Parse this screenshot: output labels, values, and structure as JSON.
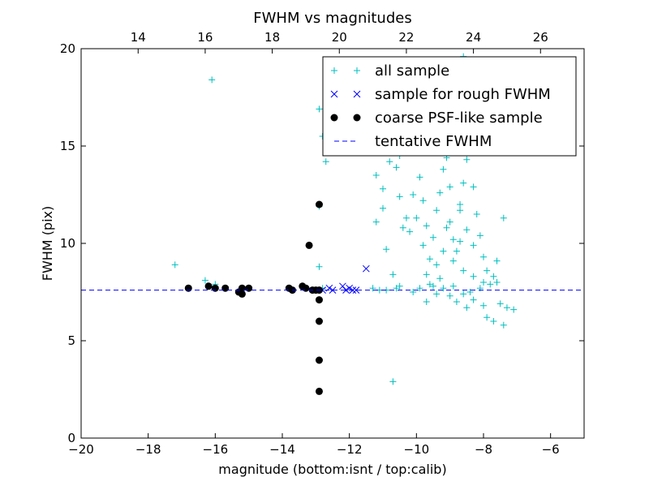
{
  "chart_data": {
    "type": "scatter",
    "title": "FWHM vs magnitudes",
    "xlabel": "magnitude (bottom:isnt / top:calib)",
    "ylabel": "FWHM (pix)",
    "xlim": [
      -20,
      -5
    ],
    "ylim": [
      0,
      20
    ],
    "top_xlim": [
      12.3,
      27.3
    ],
    "x_ticks": [
      "−20",
      "−18",
      "−16",
      "−14",
      "−12",
      "−10",
      "−8",
      "−6"
    ],
    "x_tick_values": [
      -20,
      -18,
      -16,
      -14,
      -12,
      -10,
      -8,
      -6
    ],
    "top_ticks": [
      "14",
      "16",
      "18",
      "20",
      "22",
      "24",
      "26"
    ],
    "top_tick_values": [
      14,
      16,
      18,
      20,
      22,
      24,
      26
    ],
    "y_ticks": [
      "0",
      "5",
      "10",
      "15",
      "20"
    ],
    "y_tick_values": [
      0,
      5,
      10,
      15,
      20
    ],
    "grid": false,
    "legend_position": "top-right",
    "series": [
      {
        "name": "all sample",
        "marker": "plus",
        "color": "#00bfbf",
        "points": [
          [
            -17.2,
            8.9
          ],
          [
            -16.1,
            18.4
          ],
          [
            -16.3,
            8.1
          ],
          [
            -16.0,
            7.9
          ],
          [
            -15.7,
            7.7
          ],
          [
            -15.3,
            7.5
          ],
          [
            -12.9,
            16.9
          ],
          [
            -12.8,
            15.5
          ],
          [
            -12.7,
            15.0
          ],
          [
            -12.7,
            14.2
          ],
          [
            -12.9,
            11.9
          ],
          [
            -12.9,
            8.8
          ],
          [
            -12.8,
            7.7
          ],
          [
            -12.9,
            7.6
          ],
          [
            -11.3,
            7.7
          ],
          [
            -11.1,
            7.6
          ],
          [
            -11.2,
            11.1
          ],
          [
            -11.0,
            11.8
          ],
          [
            -10.9,
            9.7
          ],
          [
            -10.7,
            8.4
          ],
          [
            -10.7,
            2.9
          ],
          [
            -10.9,
            7.6
          ],
          [
            -10.6,
            7.7
          ],
          [
            -10.5,
            7.8
          ],
          [
            -11.4,
            15.6
          ],
          [
            -11.2,
            13.5
          ],
          [
            -11.0,
            12.8
          ],
          [
            -10.8,
            14.2
          ],
          [
            -10.6,
            13.9
          ],
          [
            -10.5,
            14.5
          ],
          [
            -10.3,
            16.3
          ],
          [
            -10.2,
            15.4
          ],
          [
            -10.5,
            12.4
          ],
          [
            -10.3,
            11.3
          ],
          [
            -10.4,
            10.8
          ],
          [
            -10.2,
            10.6
          ],
          [
            -10.1,
            12.5
          ],
          [
            -10.0,
            11.3
          ],
          [
            -9.9,
            13.4
          ],
          [
            -9.8,
            12.2
          ],
          [
            -9.7,
            10.9
          ],
          [
            -9.8,
            9.9
          ],
          [
            -9.6,
            9.2
          ],
          [
            -9.5,
            10.3
          ],
          [
            -9.7,
            8.4
          ],
          [
            -9.5,
            7.8
          ],
          [
            -9.3,
            8.2
          ],
          [
            -9.4,
            11.7
          ],
          [
            -9.3,
            12.6
          ],
          [
            -9.2,
            13.8
          ],
          [
            -9.1,
            14.4
          ],
          [
            -9.0,
            11.1
          ],
          [
            -8.9,
            10.2
          ],
          [
            -8.8,
            9.6
          ],
          [
            -8.7,
            12.0
          ],
          [
            -8.6,
            13.1
          ],
          [
            -8.5,
            14.3
          ],
          [
            -8.4,
            15.1
          ],
          [
            -8.3,
            12.9
          ],
          [
            -8.2,
            11.5
          ],
          [
            -8.1,
            10.4
          ],
          [
            -8.0,
            9.3
          ],
          [
            -7.9,
            8.6
          ],
          [
            -7.8,
            7.9
          ],
          [
            -7.7,
            8.3
          ],
          [
            -8.6,
            19.6
          ],
          [
            -8.9,
            18.1
          ],
          [
            -9.6,
            17.2
          ],
          [
            -10.0,
            16.6
          ],
          [
            -9.1,
            16.0
          ],
          [
            -8.8,
            15.6
          ],
          [
            -9.5,
            15.0
          ],
          [
            -8.3,
            7.1
          ],
          [
            -8.0,
            6.8
          ],
          [
            -7.9,
            6.2
          ],
          [
            -7.7,
            6.0
          ],
          [
            -7.5,
            6.9
          ],
          [
            -7.3,
            6.7
          ],
          [
            -7.1,
            6.6
          ],
          [
            -7.4,
            5.8
          ],
          [
            -7.4,
            11.3
          ],
          [
            -7.6,
            9.1
          ],
          [
            -7.6,
            8.0
          ],
          [
            -8.6,
            7.4
          ],
          [
            -9.0,
            7.3
          ],
          [
            -9.4,
            7.4
          ],
          [
            -9.7,
            7.0
          ],
          [
            -8.8,
            7.0
          ],
          [
            -8.5,
            6.7
          ],
          [
            -10.1,
            7.5
          ],
          [
            -9.9,
            7.7
          ],
          [
            -9.6,
            7.9
          ],
          [
            -9.2,
            7.7
          ],
          [
            -8.9,
            7.8
          ],
          [
            -8.4,
            7.5
          ],
          [
            -8.1,
            7.7
          ],
          [
            -9.0,
            12.9
          ],
          [
            -8.7,
            11.7
          ],
          [
            -8.5,
            10.7
          ],
          [
            -8.3,
            9.9
          ],
          [
            -8.9,
            9.1
          ],
          [
            -9.2,
            9.6
          ],
          [
            -9.4,
            8.9
          ],
          [
            -8.6,
            8.6
          ],
          [
            -8.3,
            8.3
          ],
          [
            -8.0,
            8.0
          ],
          [
            -9.1,
            10.8
          ],
          [
            -8.7,
            10.1
          ]
        ]
      },
      {
        "name": "sample for rough FWHM",
        "marker": "x",
        "color": "#0000ff",
        "points": [
          [
            -12.8,
            7.6
          ],
          [
            -12.6,
            7.7
          ],
          [
            -12.5,
            7.6
          ],
          [
            -12.2,
            7.8
          ],
          [
            -12.1,
            7.6
          ],
          [
            -12.0,
            7.7
          ],
          [
            -11.9,
            7.6
          ],
          [
            -11.8,
            7.6
          ],
          [
            -11.5,
            8.7
          ]
        ]
      },
      {
        "name": "coarse PSF-like sample",
        "marker": "circle",
        "color": "#000000",
        "points": [
          [
            -16.8,
            7.7
          ],
          [
            -16.2,
            7.8
          ],
          [
            -16.0,
            7.7
          ],
          [
            -15.7,
            7.7
          ],
          [
            -15.3,
            7.5
          ],
          [
            -15.2,
            7.7
          ],
          [
            -15.2,
            7.4
          ],
          [
            -15.0,
            7.7
          ],
          [
            -13.8,
            7.7
          ],
          [
            -13.7,
            7.6
          ],
          [
            -13.4,
            7.8
          ],
          [
            -13.3,
            7.7
          ],
          [
            -13.2,
            9.9
          ],
          [
            -13.1,
            7.6
          ],
          [
            -13.0,
            7.6
          ],
          [
            -12.9,
            7.6
          ],
          [
            -12.9,
            12.0
          ],
          [
            -12.9,
            7.1
          ],
          [
            -12.9,
            6.0
          ],
          [
            -12.9,
            4.0
          ],
          [
            -12.9,
            2.4
          ]
        ]
      },
      {
        "name": "tentative FWHM",
        "marker": "dashed-line",
        "color": "#0000ff",
        "y": 7.6
      }
    ]
  }
}
